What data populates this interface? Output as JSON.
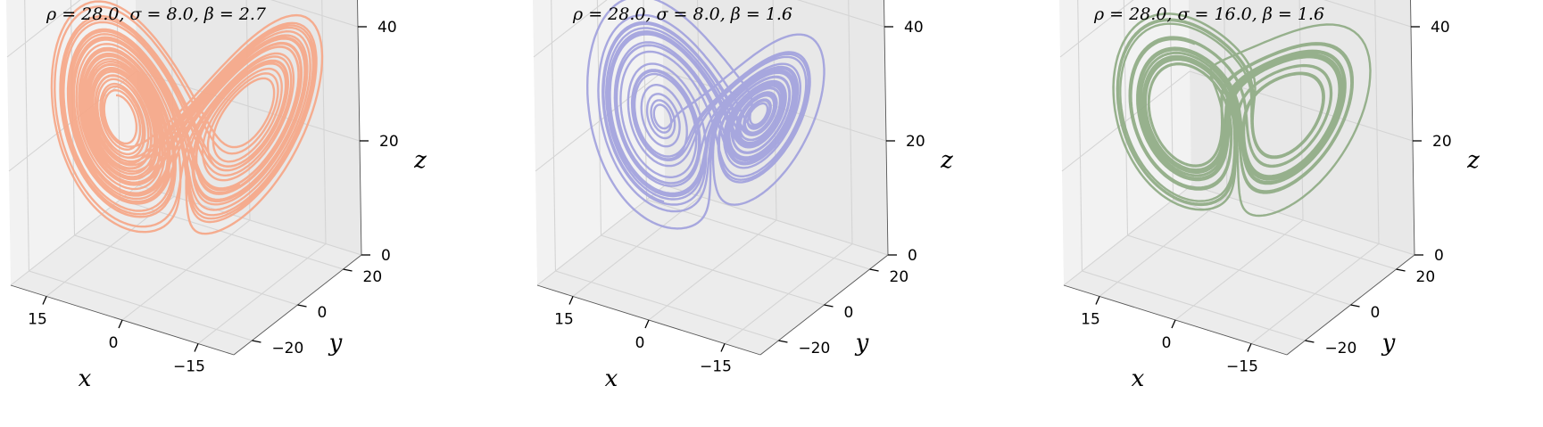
{
  "chart_data": [
    {
      "type": "line3d",
      "title": "ρ = 28.0, σ = 8.0, β = 2.7",
      "params": {
        "rho": 28.0,
        "sigma": 8.0,
        "beta": 2.7
      },
      "color": "#f6a98a",
      "xlabel": "x",
      "ylabel": "y",
      "zlabel": "z",
      "xticks": [
        "−15",
        "0",
        "15"
      ],
      "yticks": [
        "−20",
        "0",
        "20"
      ],
      "zticks": [
        "0",
        "20",
        "40"
      ],
      "xlim": [
        -22,
        22
      ],
      "ylim": [
        -28,
        28
      ],
      "zlim": [
        0,
        50
      ],
      "grid": true
    },
    {
      "type": "line3d",
      "title": "ρ = 28.0, σ = 8.0, β = 1.6",
      "params": {
        "rho": 28.0,
        "sigma": 8.0,
        "beta": 1.6
      },
      "color": "#a3a3dd",
      "xlabel": "x",
      "ylabel": "y",
      "zlabel": "z",
      "xticks": [
        "−15",
        "0",
        "15"
      ],
      "yticks": [
        "−20",
        "0",
        "20"
      ],
      "zticks": [
        "0",
        "20",
        "40"
      ],
      "xlim": [
        -22,
        22
      ],
      "ylim": [
        -28,
        28
      ],
      "zlim": [
        0,
        50
      ],
      "grid": true
    },
    {
      "type": "line3d",
      "title": "ρ = 28.0, σ = 16.0, β = 1.6",
      "params": {
        "rho": 28.0,
        "sigma": 16.0,
        "beta": 1.6
      },
      "color": "#91ad87",
      "xlabel": "x",
      "ylabel": "y",
      "zlabel": "z",
      "xticks": [
        "−15",
        "0",
        "15"
      ],
      "yticks": [
        "−20",
        "0",
        "20"
      ],
      "zticks": [
        "0",
        "20",
        "40"
      ],
      "xlim": [
        -22,
        22
      ],
      "ylim": [
        -28,
        28
      ],
      "zlim": [
        0,
        50
      ],
      "grid": true
    }
  ]
}
